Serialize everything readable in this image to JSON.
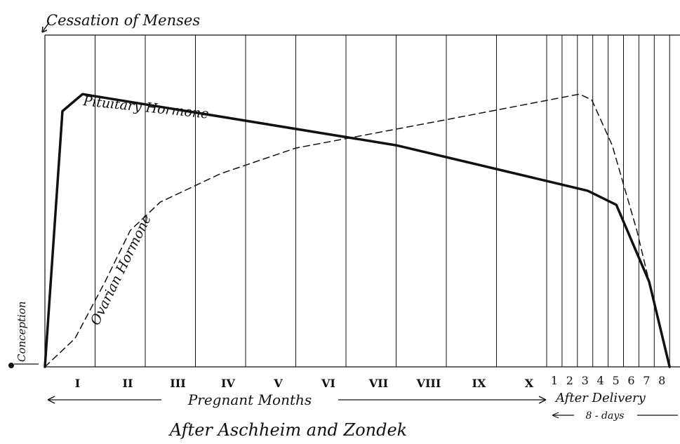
{
  "chart_data": {
    "type": "line",
    "top_note": "Cessation of Menses",
    "conception_label": "Conception",
    "credit": "After Aschheim and Zondek",
    "pregnancy": {
      "months": [
        "I",
        "II",
        "III",
        "IV",
        "V",
        "VI",
        "VII",
        "VIII",
        "IX",
        "X"
      ],
      "span_label": "Pregnant Months"
    },
    "postpartum": {
      "days": [
        "1",
        "2",
        "3",
        "4",
        "5",
        "6",
        "7",
        "8"
      ],
      "label": "After Delivery",
      "span_label": "8 - days"
    },
    "series": [
      {
        "name": "Pituitary Hormone",
        "style": "solid-thick",
        "color": "#111111",
        "points": [
          [
            0,
            0
          ],
          [
            0.35,
            90
          ],
          [
            0.75,
            96
          ],
          [
            7,
            78
          ],
          [
            10.5,
            62
          ],
          [
            10.85,
            57
          ],
          [
            11.25,
            30
          ],
          [
            11.5,
            0
          ]
        ]
      },
      {
        "name": "Ovarian Hormone",
        "style": "dashed",
        "color": "#111111",
        "points": [
          [
            0,
            0
          ],
          [
            0.6,
            10
          ],
          [
            1.2,
            30
          ],
          [
            1.7,
            48
          ],
          [
            2.3,
            58
          ],
          [
            3.5,
            68
          ],
          [
            5,
            77
          ],
          [
            8,
            87
          ],
          [
            10.4,
            96
          ],
          [
            10.55,
            94
          ],
          [
            10.8,
            78
          ],
          [
            11.1,
            48
          ],
          [
            11.5,
            0
          ]
        ]
      }
    ],
    "xlim": [
      0,
      11.5
    ],
    "ylim": [
      0,
      100
    ],
    "grid": true
  }
}
